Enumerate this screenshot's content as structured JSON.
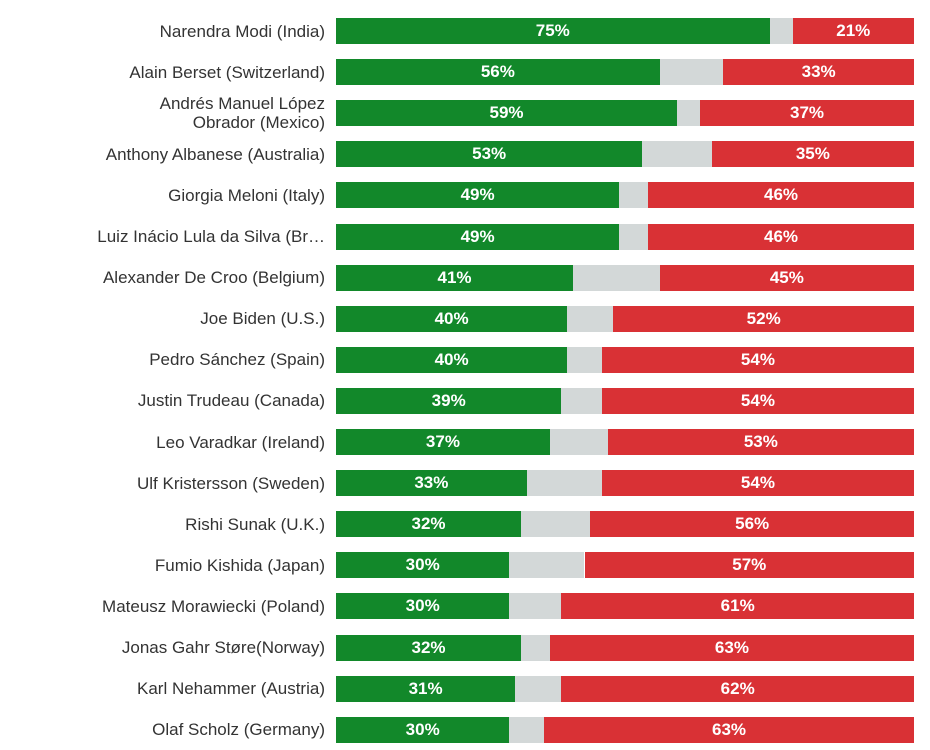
{
  "colors": {
    "approve": "#12882a",
    "neutral": "#d3d8d8",
    "disapprove": "#d93135"
  },
  "chart_data": {
    "type": "bar",
    "orientation": "horizontal-stacked",
    "categories": [
      "Narendra Modi (India)",
      "Alain Berset (Switzerland)",
      "Andrés Manuel López\nObrador (Mexico)",
      "Anthony Albanese (Australia)",
      "Giorgia Meloni (Italy)",
      "Luiz Inácio Lula da Silva (Br…",
      "Alexander De Croo (Belgium)",
      "Joe Biden (U.S.)",
      "Pedro Sánchez (Spain)",
      "Justin Trudeau (Canada)",
      "Leo Varadkar (Ireland)",
      "Ulf Kristersson (Sweden)",
      "Rishi Sunak (U.K.)",
      "Fumio Kishida (Japan)",
      "Mateusz Morawiecki (Poland)",
      "Jonas Gahr Støre(Norway)",
      "Karl Nehammer (Austria)",
      "Olaf Scholz (Germany)"
    ],
    "series": [
      {
        "color": "#12882a",
        "values": [
          75,
          56,
          59,
          53,
          49,
          49,
          41,
          40,
          40,
          39,
          37,
          33,
          32,
          30,
          30,
          32,
          31,
          30
        ],
        "labels": [
          "75%",
          "56%",
          "59%",
          "53%",
          "49%",
          "49%",
          "41%",
          "40%",
          "40%",
          "39%",
          "37%",
          "33%",
          "32%",
          "30%",
          "30%",
          "32%",
          "31%",
          "30%"
        ]
      },
      {
        "color": "#d3d8d8",
        "values": [
          4,
          11,
          4,
          12,
          5,
          5,
          15,
          8,
          6,
          7,
          10,
          13,
          12,
          13,
          9,
          5,
          8,
          6
        ]
      },
      {
        "color": "#d93135",
        "values": [
          21,
          33,
          37,
          35,
          46,
          46,
          45,
          52,
          54,
          54,
          53,
          54,
          56,
          57,
          61,
          63,
          62,
          63
        ],
        "labels": [
          "21%",
          "33%",
          "37%",
          "35%",
          "46%",
          "46%",
          "45%",
          "52%",
          "54%",
          "54%",
          "53%",
          "54%",
          "56%",
          "57%",
          "61%",
          "63%",
          "62%",
          "63%"
        ]
      }
    ],
    "xlim": [
      0,
      100
    ]
  }
}
